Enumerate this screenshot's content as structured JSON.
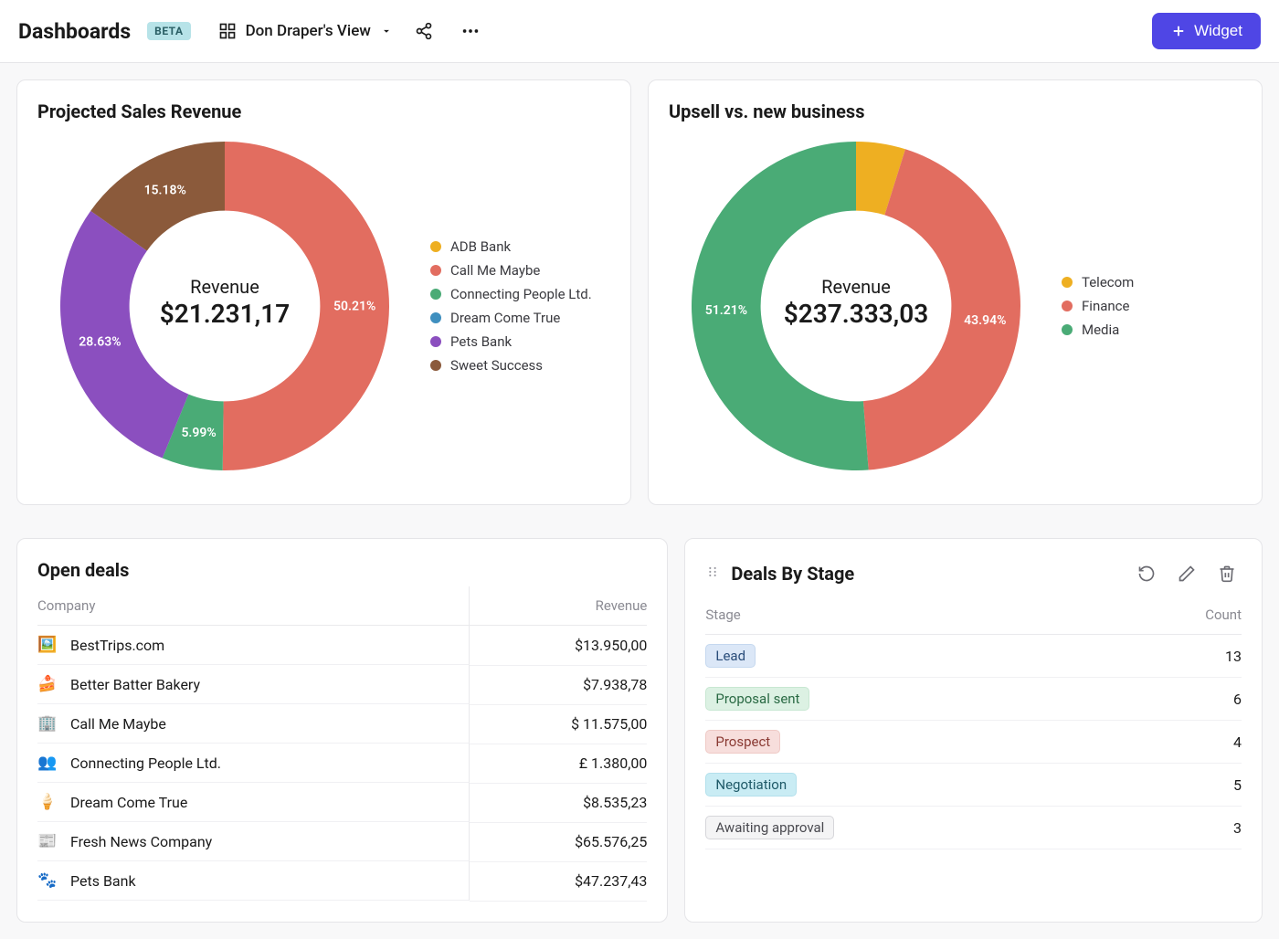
{
  "topbar": {
    "title": "Dashboards",
    "badge": "BETA",
    "view_label": "Don Draper's View",
    "widget_button": "Widget"
  },
  "projected_chart": {
    "title": "Projected Sales Revenue",
    "center_label": "Revenue",
    "center_value": "$21.231,17",
    "type": "donut",
    "inner_radius_ratio": 0.58,
    "outer_radius": 180,
    "slice_label_fontsize": 14,
    "background_color": "#ffffff",
    "legend_fontsize": 15,
    "series": [
      {
        "label": "ADB Bank",
        "color": "#eeaf22",
        "value": 0.0,
        "pct_label": ""
      },
      {
        "label": "Call Me Maybe",
        "color": "#e26d60",
        "value": 50.21,
        "pct_label": "50.21%"
      },
      {
        "label": "Connecting People Ltd.",
        "color": "#4aab76",
        "value": 5.99,
        "pct_label": "5.99%"
      },
      {
        "label": "Dream Come True",
        "color": "#3f8fbf",
        "value": 0.0,
        "pct_label": ""
      },
      {
        "label": "Pets Bank",
        "color": "#8b4fbf",
        "value": 28.63,
        "pct_label": "28.63%"
      },
      {
        "label": "Sweet Success",
        "color": "#8b5a3b",
        "value": 15.18,
        "pct_label": "15.18%"
      }
    ],
    "start_angle_deg": -90
  },
  "upsell_chart": {
    "title": "Upsell vs. new business",
    "center_label": "Revenue",
    "center_value": "$237.333,03",
    "type": "donut",
    "inner_radius_ratio": 0.58,
    "outer_radius": 180,
    "slice_label_fontsize": 14,
    "background_color": "#ffffff",
    "legend_fontsize": 15,
    "start_angle_deg": -90,
    "series": [
      {
        "label": "Telecom",
        "color": "#eeaf22",
        "value": 4.85,
        "pct_label": ""
      },
      {
        "label": "Finance",
        "color": "#e26d60",
        "value": 43.94,
        "pct_label": "43.94%"
      },
      {
        "label": "Media",
        "color": "#4aab76",
        "value": 51.21,
        "pct_label": "51.21%"
      }
    ]
  },
  "open_deals": {
    "title": "Open deals",
    "columns": {
      "company": "Company",
      "revenue": "Revenue"
    },
    "rows": [
      {
        "icon": "🖼️",
        "company": "BestTrips.com",
        "revenue": "$13.950,00"
      },
      {
        "icon": "🍰",
        "company": "Better Batter Bakery",
        "revenue": "$7.938,78"
      },
      {
        "icon": "🏢",
        "company": "Call Me Maybe",
        "revenue": "$ 11.575,00"
      },
      {
        "icon": "👥",
        "company": "Connecting People Ltd.",
        "revenue": "£ 1.380,00"
      },
      {
        "icon": "🍦",
        "company": "Dream Come True",
        "revenue": "$8.535,23"
      },
      {
        "icon": "📰",
        "company": "Fresh News Company",
        "revenue": "$65.576,25"
      },
      {
        "icon": "🐾",
        "company": "Pets Bank",
        "revenue": "$47.237,43"
      }
    ]
  },
  "deals_by_stage": {
    "title": "Deals By Stage",
    "columns": {
      "stage": "Stage",
      "count": "Count"
    },
    "rows": [
      {
        "stage": "Lead",
        "count": "13",
        "bg": "#dbe7f7",
        "fg": "#2a4d7a",
        "border": "#c5d8ef"
      },
      {
        "stage": "Proposal sent",
        "count": "6",
        "bg": "#dcf1e3",
        "fg": "#2a6a44",
        "border": "#c8e7d2"
      },
      {
        "stage": "Prospect",
        "count": "4",
        "bg": "#f7dedc",
        "fg": "#8a3a33",
        "border": "#efcac6"
      },
      {
        "stage": "Negotiation",
        "count": "5",
        "bg": "#c9ecf4",
        "fg": "#1f5a68",
        "border": "#b3e0ec"
      },
      {
        "stage": "Awaiting approval",
        "count": "3",
        "bg": "#f4f4f5",
        "fg": "#4a4a50",
        "border": "#d6d6da"
      }
    ]
  }
}
